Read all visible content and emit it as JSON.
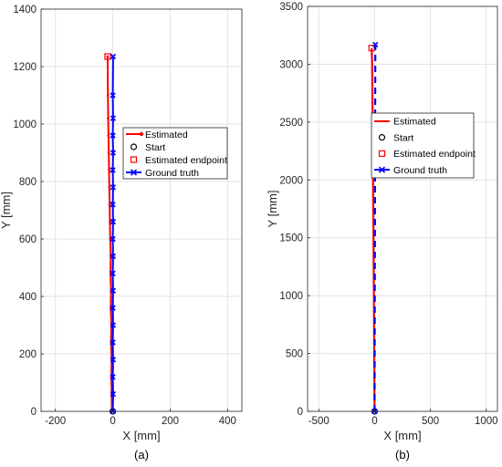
{
  "chart_data": [
    {
      "panel_label": "(a)",
      "type": "line",
      "xlabel": "X [mm]",
      "ylabel": "Y [mm]",
      "xlim": [
        -250,
        450
      ],
      "ylim": [
        0,
        1400
      ],
      "xticks": [
        -200,
        0,
        200,
        400
      ],
      "yticks": [
        0,
        200,
        400,
        600,
        800,
        1000,
        1200,
        1400
      ],
      "grid": true,
      "legend_position": "right, upper-middle",
      "legend": [
        "Estimated",
        "Start",
        "Estimated endpoint",
        "Ground truth"
      ],
      "series": [
        {
          "name": "Estimated",
          "color": "#ff0000",
          "marker": "dot",
          "x": [
            -3,
            -4,
            -5,
            -4,
            -6,
            -5,
            -7,
            -6,
            -8,
            -7,
            -9,
            -10,
            -11,
            -12,
            -13,
            -14,
            -15,
            -16,
            -17,
            -18
          ],
          "y": [
            0,
            60,
            120,
            180,
            240,
            300,
            360,
            420,
            480,
            540,
            600,
            660,
            720,
            780,
            840,
            900,
            960,
            1020,
            1100,
            1235
          ]
        },
        {
          "name": "Start",
          "color": "#000000",
          "marker": "circle",
          "x": [
            0
          ],
          "y": [
            0
          ]
        },
        {
          "name": "Estimated endpoint",
          "color": "#ff0000",
          "marker": "square",
          "x": [
            -18
          ],
          "y": [
            1235
          ]
        },
        {
          "name": "Ground truth",
          "color": "#0000ff",
          "marker": "x",
          "x": [
            0,
            1,
            0,
            1,
            0,
            1,
            0,
            1,
            0,
            1,
            0,
            1,
            0,
            1,
            0,
            1,
            0,
            1,
            0,
            1
          ],
          "y": [
            0,
            60,
            120,
            180,
            240,
            300,
            360,
            420,
            480,
            540,
            600,
            660,
            720,
            780,
            840,
            900,
            960,
            1020,
            1100,
            1235
          ]
        }
      ]
    },
    {
      "panel_label": "(b)",
      "type": "line",
      "xlabel": "X [mm]",
      "ylabel": "Y [mm]",
      "xlim": [
        -600,
        1100
      ],
      "ylim": [
        0,
        3500
      ],
      "xticks": [
        -500,
        0,
        500,
        1000
      ],
      "yticks": [
        0,
        500,
        1000,
        1500,
        2000,
        2500,
        3000,
        3500
      ],
      "grid": true,
      "legend_position": "right, upper-middle",
      "legend": [
        "Estimated",
        "Start",
        "Estimated endpoint",
        "Ground truth"
      ],
      "series": [
        {
          "name": "Estimated",
          "color": "#ff0000",
          "marker": "none",
          "x": [
            0,
            -3,
            -6,
            -10,
            -14,
            -18,
            -22,
            -26
          ],
          "y": [
            0,
            500,
            1000,
            1500,
            2000,
            2500,
            3000,
            3140
          ]
        },
        {
          "name": "Start",
          "color": "#000000",
          "marker": "circle",
          "x": [
            0
          ],
          "y": [
            0
          ]
        },
        {
          "name": "Estimated endpoint",
          "color": "#ff0000",
          "marker": "square",
          "x": [
            -26
          ],
          "y": [
            3140
          ]
        },
        {
          "name": "Ground truth",
          "color": "#0000ff",
          "marker": "x",
          "x": [
            0,
            1,
            2,
            3,
            4,
            5,
            6,
            7
          ],
          "y": [
            0,
            500,
            1000,
            1500,
            2000,
            2500,
            3000,
            3170
          ]
        }
      ]
    }
  ]
}
